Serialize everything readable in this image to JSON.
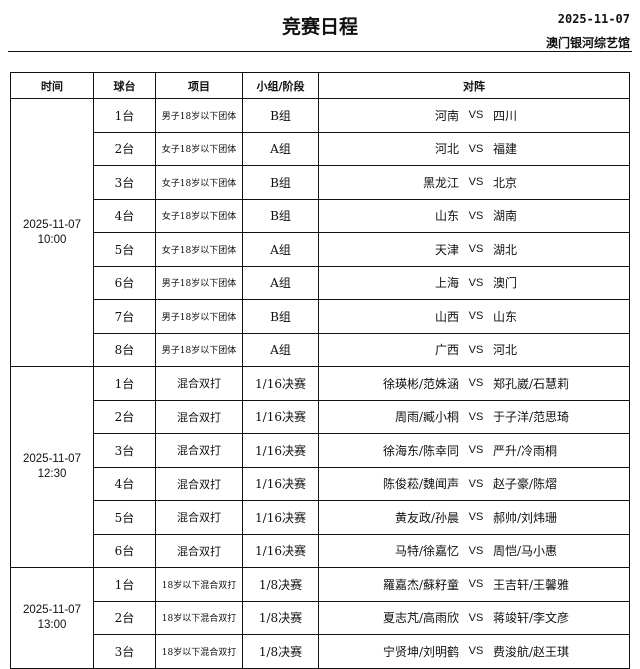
{
  "header": {
    "title": "竞赛日程",
    "date": "2025-11-07",
    "venue": "澳门银河综艺馆"
  },
  "columns": [
    "时间",
    "球台",
    "项目",
    "小组/阶段",
    "对阵"
  ],
  "vs_label": "VS",
  "sessions": [
    {
      "time": "2025-11-07",
      "clock": "10:00",
      "rows": [
        {
          "table": "1台",
          "event": "男子18岁以下团体",
          "stage": "B组",
          "left": "河南",
          "right": "四川"
        },
        {
          "table": "2台",
          "event": "女子18岁以下团体",
          "stage": "A组",
          "left": "河北",
          "right": "福建"
        },
        {
          "table": "3台",
          "event": "女子18岁以下团体",
          "stage": "B组",
          "left": "黑龙江",
          "right": "北京"
        },
        {
          "table": "4台",
          "event": "女子18岁以下团体",
          "stage": "B组",
          "left": "山东",
          "right": "湖南"
        },
        {
          "table": "5台",
          "event": "女子18岁以下团体",
          "stage": "A组",
          "left": "天津",
          "right": "湖北"
        },
        {
          "table": "6台",
          "event": "男子18岁以下团体",
          "stage": "A组",
          "left": "上海",
          "right": "澳门"
        },
        {
          "table": "7台",
          "event": "男子18岁以下团体",
          "stage": "B组",
          "left": "山西",
          "right": "山东"
        },
        {
          "table": "8台",
          "event": "男子18岁以下团体",
          "stage": "A组",
          "left": "广西",
          "right": "河北"
        }
      ]
    },
    {
      "time": "2025-11-07",
      "clock": "12:30",
      "rows": [
        {
          "table": "1台",
          "event": "混合双打",
          "stage": "1/16决赛",
          "left": "徐瑛彬/范姝涵",
          "right": "郑孔崴/石慧莉"
        },
        {
          "table": "2台",
          "event": "混合双打",
          "stage": "1/16决赛",
          "left": "周雨/臧小桐",
          "right": "于子洋/范思琦"
        },
        {
          "table": "3台",
          "event": "混合双打",
          "stage": "1/16决赛",
          "left": "徐海东/陈幸同",
          "right": "严升/冷雨桐"
        },
        {
          "table": "4台",
          "event": "混合双打",
          "stage": "1/16决赛",
          "left": "陈俊菘/魏闻声",
          "right": "赵子豪/陈熠"
        },
        {
          "table": "5台",
          "event": "混合双打",
          "stage": "1/16决赛",
          "left": "黄友政/孙晨",
          "right": "郝帅/刘炜珊"
        },
        {
          "table": "6台",
          "event": "混合双打",
          "stage": "1/16决赛",
          "left": "马特/徐嘉忆",
          "right": "周恺/马小惠"
        }
      ]
    },
    {
      "time": "2025-11-07",
      "clock": "13:00",
      "rows": [
        {
          "table": "1台",
          "event": "18岁以下混合双打",
          "stage": "1/8决赛",
          "left": "羅嘉杰/蘇籽童",
          "right": "王吉轩/王馨雅"
        },
        {
          "table": "2台",
          "event": "18岁以下混合双打",
          "stage": "1/8决赛",
          "left": "夏志芃/高雨欣",
          "right": "蒋竣轩/李文彦"
        },
        {
          "table": "3台",
          "event": "18岁以下混合双打",
          "stage": "1/8决赛",
          "left": "宁贤坤/刘明鹤",
          "right": "费浚航/赵王琪"
        }
      ]
    }
  ]
}
